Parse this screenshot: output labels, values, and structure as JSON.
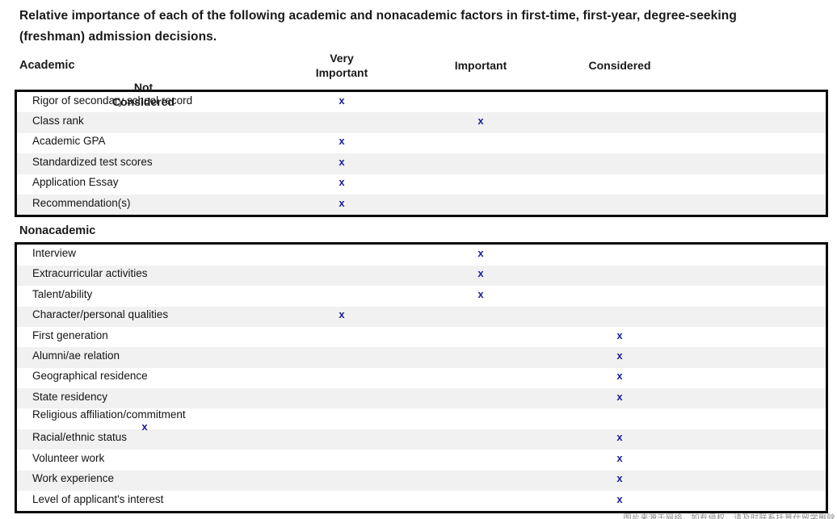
{
  "title": "Relative importance of each of the following academic and nonacademic factors in first-time, first-year, degree-seeking (freshman) admission decisions.",
  "columns": [
    "Very Important",
    "Important",
    "Considered",
    "Not Considered"
  ],
  "mark": "x",
  "colors": {
    "mark": "#1c1c9c",
    "stripe": "#f1f1f1",
    "border": "#0a0a0a",
    "text": "#1a1a1a"
  },
  "sections": [
    {
      "label": "Academic",
      "rows": [
        {
          "label": "Rigor of secondary school record",
          "rating": "Very Important"
        },
        {
          "label": "Class rank",
          "rating": "Important"
        },
        {
          "label": "Academic GPA",
          "rating": "Very Important"
        },
        {
          "label": "Standardized test scores",
          "rating": "Very Important"
        },
        {
          "label": "Application Essay",
          "rating": "Very Important"
        },
        {
          "label": "Recommendation(s)",
          "rating": "Very Important"
        }
      ]
    },
    {
      "label": "Nonacademic",
      "rows": [
        {
          "label": "Interview",
          "rating": "Important"
        },
        {
          "label": "Extracurricular activities",
          "rating": "Important"
        },
        {
          "label": "Talent/ability",
          "rating": "Important"
        },
        {
          "label": "Character/personal qualities",
          "rating": "Very Important"
        },
        {
          "label": "First generation",
          "rating": "Considered"
        },
        {
          "label": "Alumni/ae relation",
          "rating": "Considered"
        },
        {
          "label": "Geographical residence",
          "rating": "Considered"
        },
        {
          "label": "State residency",
          "rating": "Considered"
        },
        {
          "label": "Religious affiliation/commitment",
          "rating": "Not Considered"
        },
        {
          "label": "Racial/ethnic status",
          "rating": "Considered"
        },
        {
          "label": "Volunteer work",
          "rating": "Considered"
        },
        {
          "label": "Work experience",
          "rating": "Considered"
        },
        {
          "label": "Level of applicant's interest",
          "rating": "Considered"
        }
      ]
    }
  ],
  "watermark": "图片来源于网络，如有侵权，请及时联系托普仕留学删除"
}
